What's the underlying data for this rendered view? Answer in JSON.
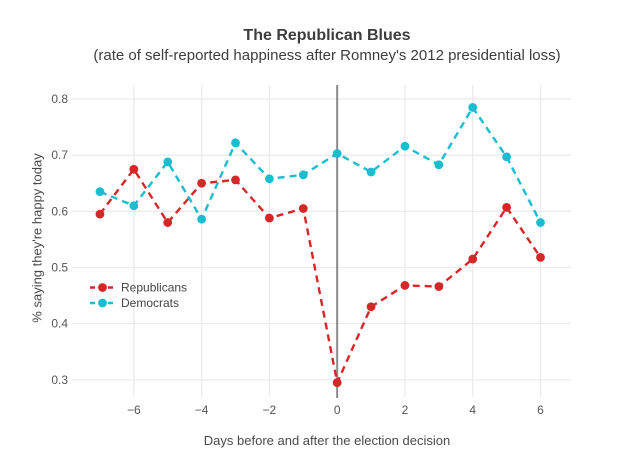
{
  "chart_data": {
    "type": "line",
    "title": "The Republican Blues",
    "subtitle": "(rate of self-reported happiness after Romney's 2012 presidential loss)",
    "xlabel": "Days before and after the election decision",
    "ylabel": "% saying they're happy today",
    "x": [
      -7,
      -6,
      -5,
      -4,
      -3,
      -2,
      -1,
      0,
      1,
      2,
      3,
      4,
      5,
      6
    ],
    "series": [
      {
        "name": "Republicans",
        "color": "#d62728",
        "values": [
          0.595,
          0.675,
          0.58,
          0.65,
          0.656,
          0.588,
          0.605,
          0.295,
          0.43,
          0.468,
          0.466,
          0.515,
          0.607,
          0.518
        ]
      },
      {
        "name": "Democrats",
        "color": "#17becf",
        "values": [
          0.635,
          0.61,
          0.688,
          0.586,
          0.722,
          0.658,
          0.665,
          0.703,
          0.67,
          0.716,
          0.683,
          0.785,
          0.697,
          0.58
        ]
      }
    ],
    "xlim": [
      -7.5,
      6.9
    ],
    "ylim": [
      0.28,
      0.825
    ],
    "xticks": [
      -6,
      -4,
      -2,
      0,
      2,
      4,
      6
    ],
    "yticks": [
      0.3,
      0.4,
      0.5,
      0.6,
      0.7,
      0.8
    ],
    "grid": true,
    "zeroline_x": 0,
    "line_style": "dashed",
    "marker": "circle",
    "legend_position": "inside-left"
  },
  "colors": {
    "background": "#ffffff",
    "gridline": "#ebebeb",
    "zeroline": "#8a8a8a",
    "title_text": "#3d3d3d",
    "tick_text": "#555555",
    "legend_text": "#444444"
  }
}
